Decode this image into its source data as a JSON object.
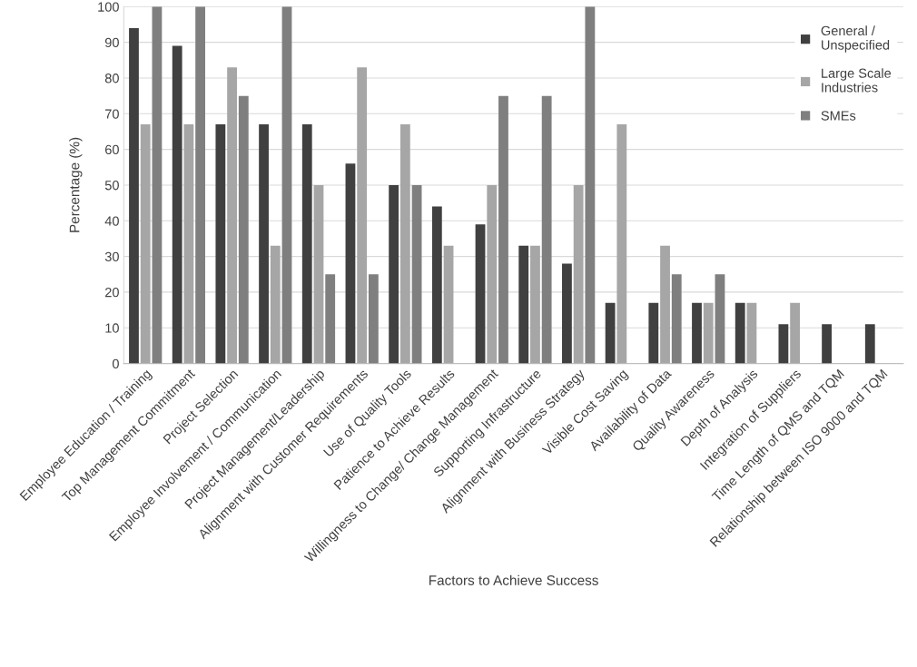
{
  "chart_data": {
    "type": "bar",
    "xlabel": "Factors to Achieve Success",
    "ylabel": "Percentage (%)",
    "categories": [
      "Employee Education / Training",
      "Top Management Commitment",
      "Project Selection",
      "Employee Involvement / Communication",
      "Project Management/Leadership",
      "Alignment with Customer Requirements",
      "Use of Quality Tools",
      "Patience to Achieve Results",
      "Willingness to Change/ Change Management",
      "Supporting Infrastructure",
      "Alignment with Business Strategy",
      "Visible Cost Saving",
      "Availability of Data",
      "Quality Awareness",
      "Depth of Analysis",
      "Integration of Suppliers",
      "Time Length of QMS and TQM",
      "Relationship between ISO 9000 and TQM"
    ],
    "series": [
      {
        "name": "General /\nUnspecified",
        "color": "#404040",
        "values": [
          94,
          89,
          67,
          67,
          67,
          56,
          50,
          44,
          39,
          33,
          28,
          17,
          17,
          17,
          17,
          11,
          11,
          11
        ]
      },
      {
        "name": "Large Scale\nIndustries",
        "color": "#a6a6a6",
        "values": [
          67,
          67,
          83,
          33,
          50,
          83,
          67,
          33,
          50,
          33,
          50,
          67,
          33,
          17,
          17,
          17,
          null,
          null
        ]
      },
      {
        "name": "SMEs",
        "color": "#7f7f7f",
        "values": [
          100,
          100,
          75,
          100,
          25,
          25,
          50,
          null,
          75,
          75,
          100,
          null,
          25,
          25,
          null,
          null,
          null,
          null
        ]
      }
    ],
    "ylim": [
      0,
      100
    ],
    "yticks": [
      0,
      10,
      20,
      30,
      40,
      50,
      60,
      70,
      80,
      90,
      100
    ],
    "grid": "y",
    "legend": "top right"
  }
}
